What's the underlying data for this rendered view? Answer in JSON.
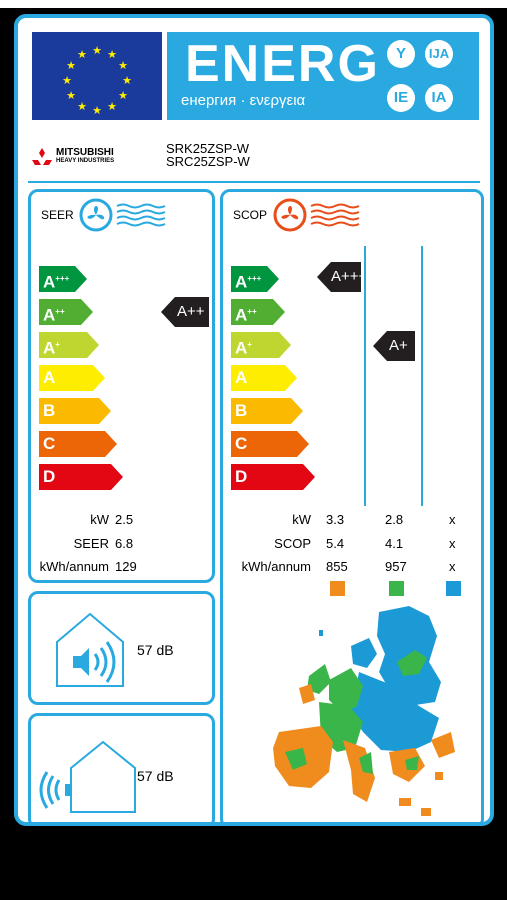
{
  "header": {
    "energy_word": "ENERG",
    "energy_sub": "енергия · ενεργεια",
    "lang_codes": [
      "Y",
      "IJA",
      "IE",
      "IA"
    ]
  },
  "supplier": {
    "brand": "MITSUBISHI",
    "brand_sub": "HEAVY INDUSTRIES",
    "model_indoor": "SRK25ZSP-W",
    "model_outdoor": "SRC25ZSP-W"
  },
  "scale_classes": [
    "A+++",
    "A++",
    "A+",
    "A",
    "B",
    "C",
    "D"
  ],
  "scale_colors": [
    "#009640",
    "#52ae32",
    "#bed62f",
    "#ffed00",
    "#fbba00",
    "#ec6608",
    "#e30613"
  ],
  "seer": {
    "title": "SEER",
    "class_indicator": "A++",
    "rows": [
      {
        "label": "kW",
        "value": "2.5"
      },
      {
        "label": "SEER",
        "value": "6.8"
      },
      {
        "label": "kWh/annum",
        "value": "129"
      }
    ]
  },
  "scop": {
    "title": "SCOP",
    "indicators": [
      "A+++",
      "A+"
    ],
    "labels": [
      "kW",
      "SCOP",
      "kWh/annum"
    ],
    "columns": [
      {
        "zone": "warmer",
        "color": "#f08c1e",
        "values": [
          "3.3",
          "5.4",
          "855"
        ]
      },
      {
        "zone": "average",
        "color": "#3ab54a",
        "values": [
          "2.8",
          "4.1",
          "957"
        ]
      },
      {
        "zone": "colder",
        "color": "#1c9ad6",
        "values": [
          "x",
          "x",
          "x"
        ]
      }
    ]
  },
  "noise": {
    "indoor_db": "57 dB",
    "outdoor_db": "57 dB"
  }
}
